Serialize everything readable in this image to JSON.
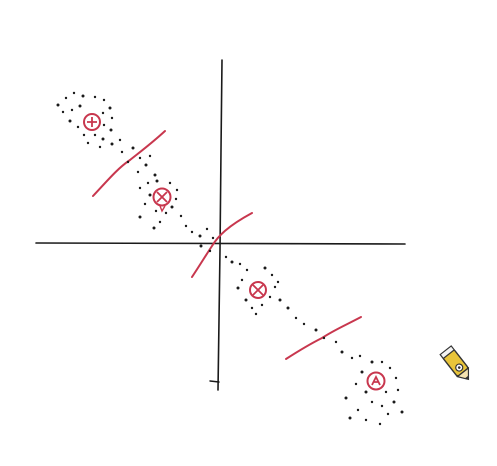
{
  "colors": {
    "ink": "#1a1a1a",
    "cluster_marker": "#c8374e",
    "boundary": "#c8374e",
    "background": "#ffffff",
    "pencil_body": "#e8c43a",
    "pencil_tip": "#333333"
  },
  "icons": {
    "cursor": "pencil-icon"
  },
  "diagram": {
    "axes": {
      "horizontal": true,
      "vertical": true
    },
    "clusters": [
      {
        "id": "cluster-1",
        "marker": "cross-circle"
      },
      {
        "id": "cluster-2",
        "marker": "cross-circle"
      },
      {
        "id": "cluster-3",
        "marker": "cross-circle"
      },
      {
        "id": "cluster-4",
        "marker": "cross-circle"
      }
    ],
    "decision_boundaries": 3
  }
}
